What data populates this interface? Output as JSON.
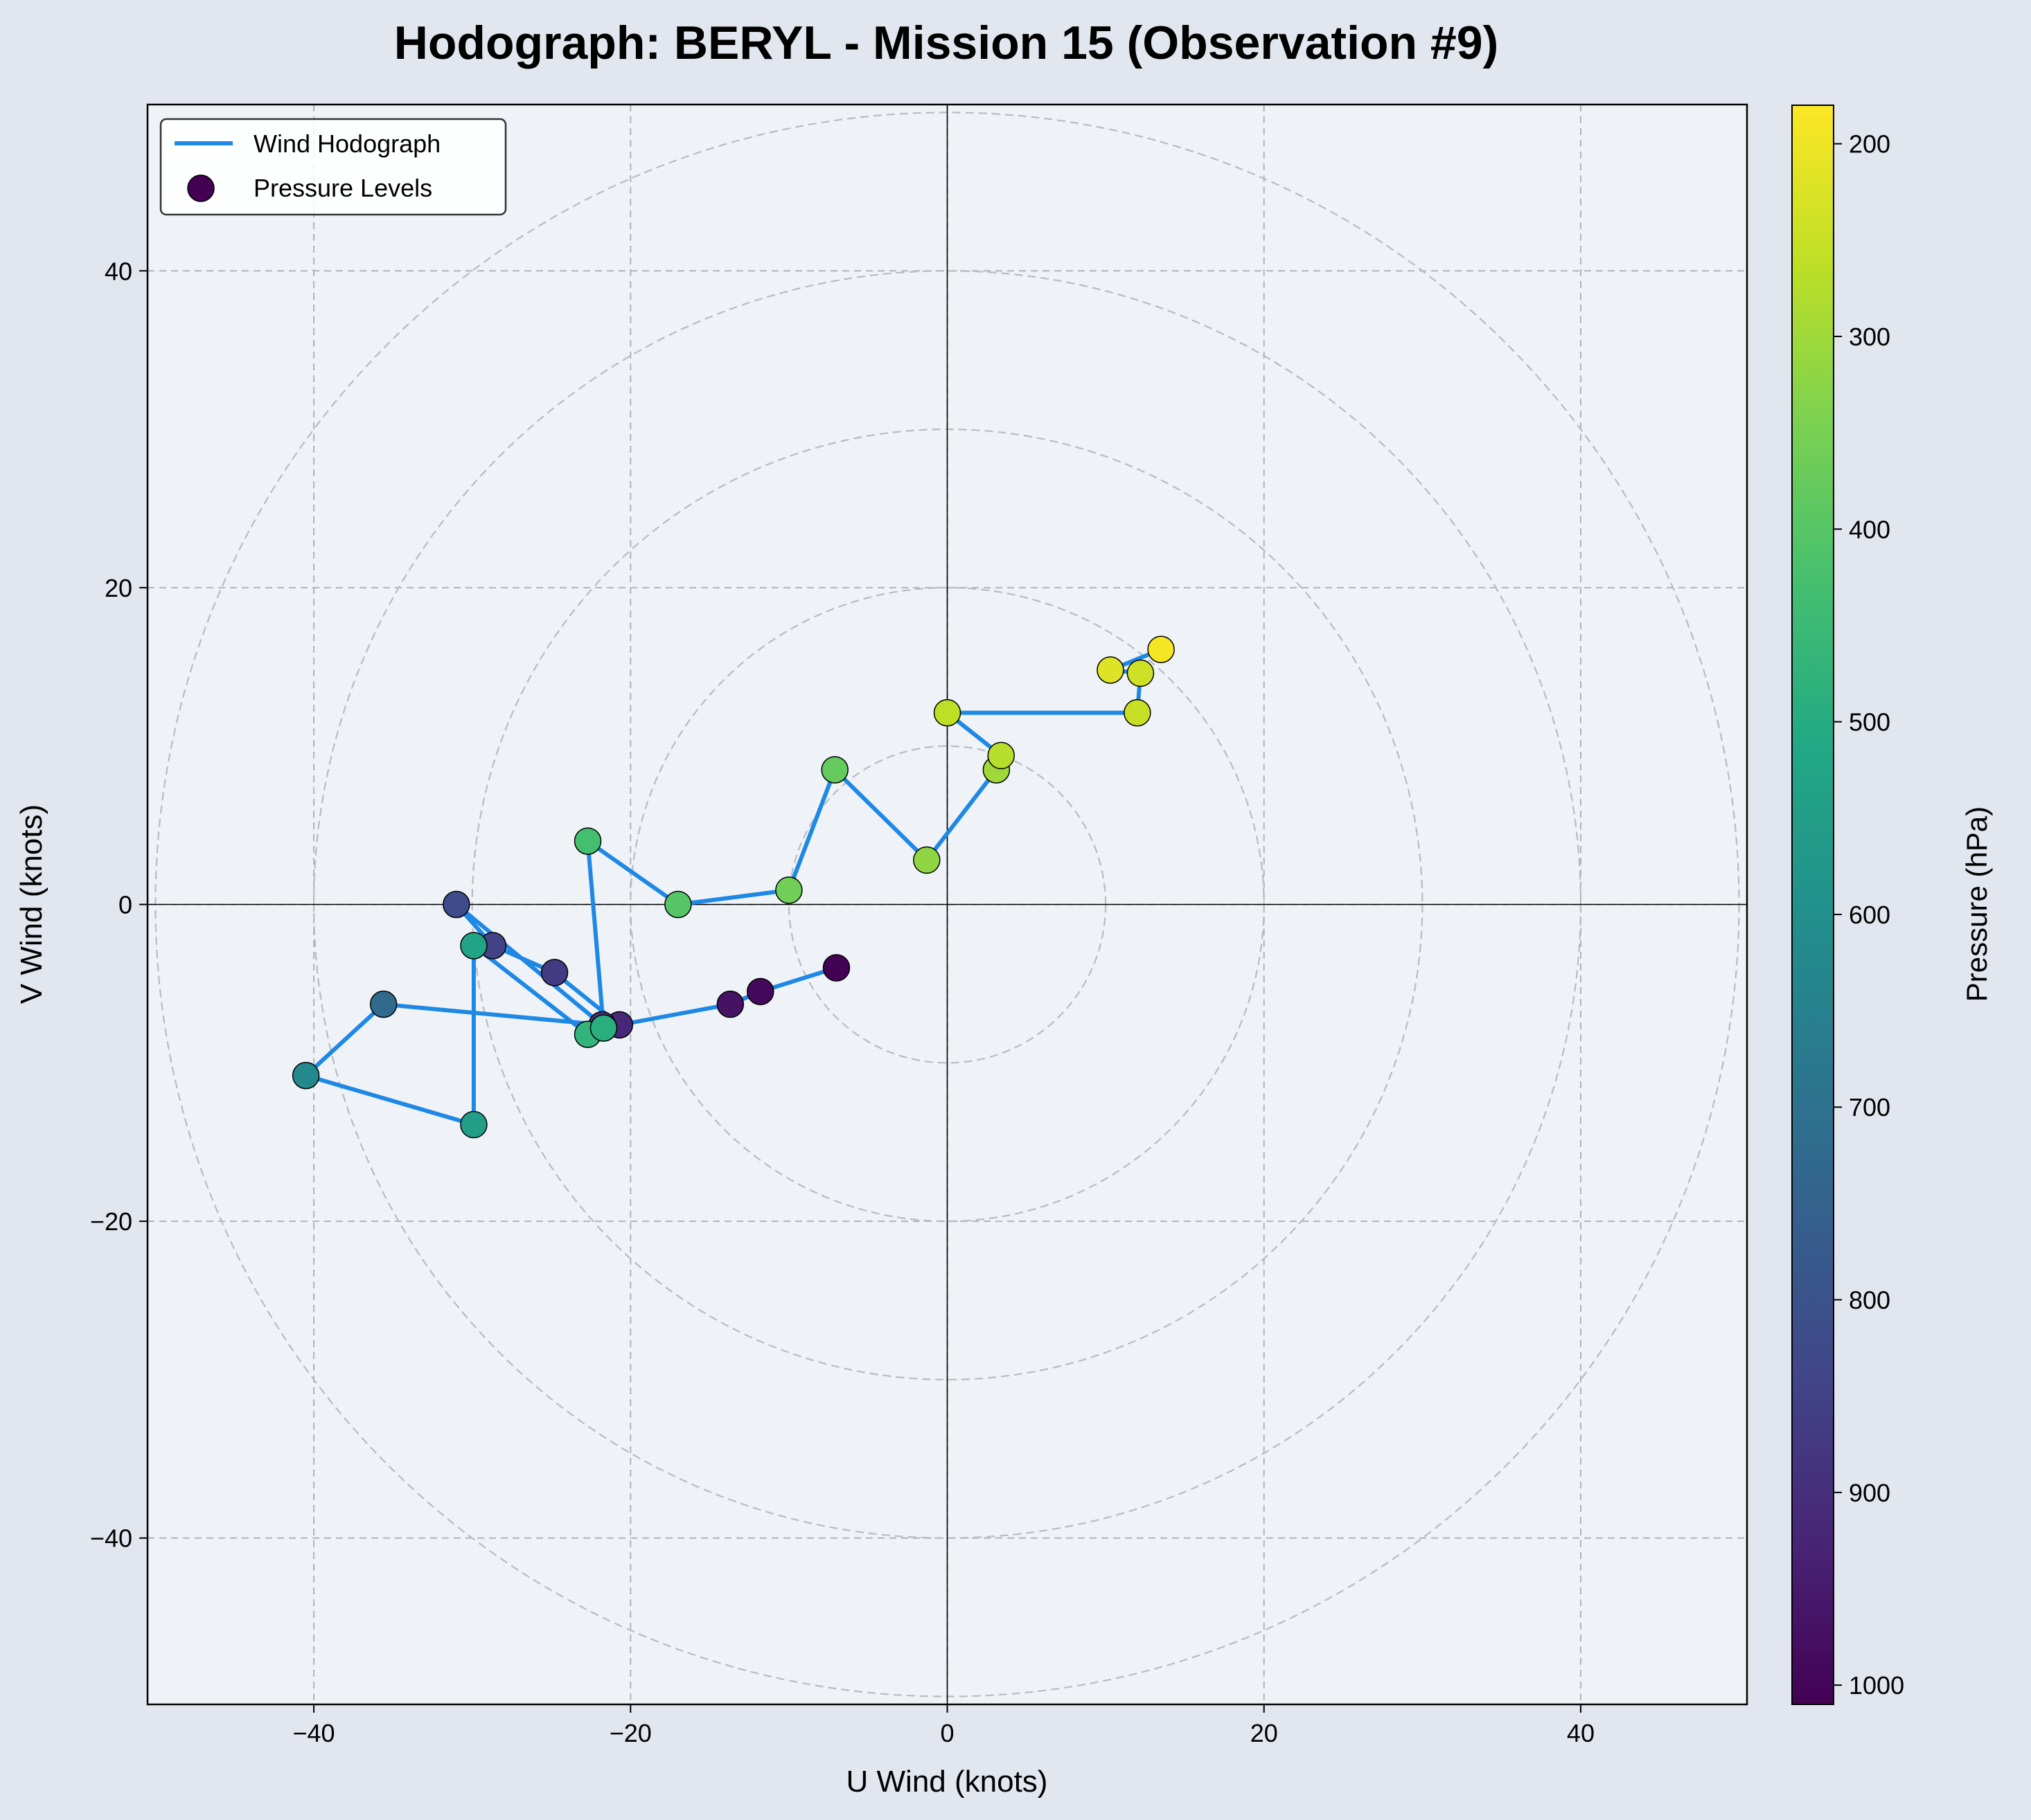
{
  "chart_data": {
    "type": "scatter",
    "title": "Hodograph: BERYL - Mission 15 (Observation #9)",
    "xlabel": "U Wind (knots)",
    "ylabel": "V Wind (knots)",
    "xlim": [
      -50.5,
      50.5
    ],
    "ylim": [
      -50.5,
      50.5
    ],
    "xticks": [
      -40,
      -20,
      0,
      20,
      40
    ],
    "yticks": [
      -40,
      -20,
      0,
      20,
      40
    ],
    "xtick_labels": [
      "−40",
      "−20",
      "0",
      "20",
      "40"
    ],
    "ytick_labels": [
      "−40",
      "−20",
      "0",
      "20",
      "40"
    ],
    "grid": true,
    "range_rings": [
      10,
      20,
      30,
      40,
      50
    ],
    "legend": {
      "placement": "top-left",
      "entries": [
        "Wind Hodograph",
        "Pressure Levels"
      ]
    },
    "colorbar": {
      "label": "Pressure (hPa)",
      "colormap": "viridis",
      "reversed": true,
      "range": [
        180,
        1010
      ],
      "ticks": [
        200,
        300,
        400,
        500,
        600,
        700,
        800,
        900,
        1000
      ],
      "tick_labels": [
        "200",
        "300",
        "400",
        "500",
        "600",
        "700",
        "800",
        "900",
        "1000"
      ]
    },
    "series": [
      {
        "name": "Wind Hodograph",
        "color": "#1e88e5",
        "points": [
          {
            "u": -7.0,
            "v": -4.0,
            "p": 1008
          },
          {
            "u": -11.8,
            "v": -5.5,
            "p": 990
          },
          {
            "u": -13.7,
            "v": -6.3,
            "p": 970
          },
          {
            "u": -20.7,
            "v": -7.6,
            "p": 920
          },
          {
            "u": -24.8,
            "v": -4.3,
            "p": 870
          },
          {
            "u": -28.7,
            "v": -2.6,
            "p": 850
          },
          {
            "u": -31.0,
            "v": 0.0,
            "p": 820
          },
          {
            "u": -21.8,
            "v": -7.6,
            "p": 890
          },
          {
            "u": -35.6,
            "v": -6.3,
            "p": 720
          },
          {
            "u": -40.5,
            "v": -10.8,
            "p": 620
          },
          {
            "u": -29.9,
            "v": -13.9,
            "p": 550
          },
          {
            "u": -29.9,
            "v": -2.6,
            "p": 530
          },
          {
            "u": -22.7,
            "v": -8.2,
            "p": 470
          },
          {
            "u": -21.7,
            "v": -7.8,
            "p": 490
          },
          {
            "u": -22.7,
            "v": 4.0,
            "p": 430
          },
          {
            "u": -17.0,
            "v": 0.0,
            "p": 400
          },
          {
            "u": -10.0,
            "v": 0.9,
            "p": 360
          },
          {
            "u": -7.1,
            "v": 8.5,
            "p": 380
          },
          {
            "u": -1.3,
            "v": 2.8,
            "p": 320
          },
          {
            "u": 3.1,
            "v": 8.5,
            "p": 300
          },
          {
            "u": 3.4,
            "v": 9.4,
            "p": 270
          },
          {
            "u": 0.0,
            "v": 12.1,
            "p": 260
          },
          {
            "u": 12.0,
            "v": 12.1,
            "p": 250
          },
          {
            "u": 12.2,
            "v": 14.6,
            "p": 240
          },
          {
            "u": 10.3,
            "v": 14.8,
            "p": 220
          },
          {
            "u": 13.5,
            "v": 16.1,
            "p": 190
          }
        ]
      }
    ]
  }
}
